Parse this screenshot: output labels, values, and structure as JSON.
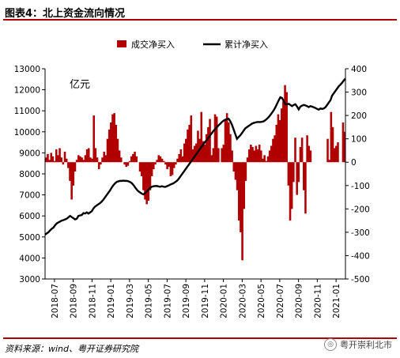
{
  "header": {
    "title": "图表4：北上资金流向情况"
  },
  "footer": {
    "source": "资料来源：wind、粤开证券研究院",
    "watermark": "粤开崇利北市"
  },
  "chart_data": {
    "type": "bar+line",
    "unit_label": "亿元",
    "legend": {
      "placement": "top",
      "bar_label": "成交净买入",
      "line_label": "累计净买入"
    },
    "colors": {
      "bar": "#b00000",
      "line": "#000000"
    },
    "x_ticks": [
      "2018-07",
      "2018-09",
      "2018-11",
      "2019-01",
      "2019-03",
      "2019-05",
      "2019-07",
      "2019-09",
      "2019-11",
      "2020-01",
      "2020-03",
      "2020-05",
      "2020-07",
      "2020-09",
      "2020-11",
      "2021-01"
    ],
    "y_left": {
      "min": 3000,
      "max": 13000,
      "ticks": [
        3000,
        4000,
        5000,
        6000,
        7000,
        8000,
        9000,
        10000,
        11000,
        12000,
        13000
      ]
    },
    "y_right": {
      "min": -500,
      "max": 400,
      "ticks": [
        400,
        300,
        200,
        100,
        0,
        -100,
        -200,
        -300,
        -400,
        -500
      ]
    },
    "bar_series": {
      "name": "成交净买入",
      "values": [
        20,
        35,
        10,
        40,
        25,
        5,
        55,
        30,
        60,
        20,
        -10,
        45,
        15,
        -25,
        -80,
        -160,
        -100,
        -40,
        10,
        30,
        25,
        20,
        10,
        30,
        55,
        60,
        20,
        15,
        200,
        60,
        20,
        -30,
        -10,
        20,
        45,
        30,
        100,
        140,
        170,
        205,
        210,
        160,
        100,
        50,
        20,
        0,
        -10,
        -20,
        -15,
        5,
        25,
        35,
        45,
        25,
        0,
        -40,
        -60,
        -120,
        -160,
        -180,
        -165,
        -120,
        -60,
        -30,
        -10,
        10,
        30,
        25,
        15,
        5,
        -10,
        -30,
        -20,
        -60,
        -55,
        -25,
        -10,
        15,
        35,
        55,
        25,
        80,
        100,
        140,
        160,
        200,
        55,
        70,
        80,
        135,
        100,
        215,
        90,
        75,
        120,
        150,
        185,
        30,
        60,
        205,
        195,
        60,
        0,
        60,
        75,
        185,
        210,
        170,
        120,
        50,
        -40,
        -75,
        -120,
        -250,
        -300,
        -420,
        -200,
        -80,
        20,
        55,
        75,
        65,
        50,
        70,
        55,
        75,
        50,
        15,
        30,
        5,
        25,
        50,
        70,
        100,
        115,
        160,
        205,
        180,
        230,
        260,
        330,
        300,
        -100,
        -250,
        -200,
        -85,
        105,
        -140,
        -85,
        65,
        105,
        -120,
        -220,
        115,
        70,
        50,
        0,
        0,
        0,
        0,
        0,
        0,
        0,
        0,
        0,
        100,
        10,
        215,
        150,
        60,
        70,
        85,
        0,
        0,
        170,
        130
      ]
    },
    "line_series": {
      "name": "累计净买入",
      "values": [
        -310,
        -305,
        -300,
        -292,
        -285,
        -280,
        -270,
        -262,
        -258,
        -254,
        -250,
        -248,
        -245,
        -242,
        -236,
        -230,
        -235,
        -240,
        -245,
        -242,
        -230,
        -228,
        -226,
        -218,
        -220,
        -215,
        -220,
        -215,
        -210,
        -198,
        -190,
        -185,
        -180,
        -175,
        -168,
        -160,
        -150,
        -140,
        -130,
        -120,
        -108,
        -98,
        -90,
        -84,
        -82,
        -80,
        -80,
        -79,
        -80,
        -80,
        -82,
        -85,
        -90,
        -98,
        -108,
        -118,
        -125,
        -130,
        -135,
        -138,
        -132,
        -125,
        -118,
        -110,
        -105,
        -103,
        -102,
        -102,
        -104,
        -105,
        -103,
        -105,
        -106,
        -103,
        -100,
        -96,
        -93,
        -90,
        -85,
        -80,
        -72,
        -62,
        -52,
        -42,
        -32,
        -22,
        -12,
        -2,
        8,
        18,
        28,
        38,
        48,
        58,
        68,
        78,
        88,
        95,
        105,
        115,
        125,
        135,
        142,
        150,
        158,
        165,
        172,
        178,
        182,
        184,
        186,
        175,
        160,
        140,
        120,
        100,
        108,
        115,
        125,
        135,
        145,
        150,
        155,
        160,
        165,
        168,
        170,
        172,
        172,
        172,
        173,
        175,
        180,
        186,
        193,
        202,
        212,
        222,
        235,
        250,
        265,
        278,
        275,
        262,
        248,
        248,
        250,
        245,
        240,
        245,
        248,
        238,
        226,
        238,
        242,
        245,
        243,
        240,
        236,
        240,
        238,
        235,
        232,
        228,
        225,
        230,
        228,
        230,
        235,
        245,
        255,
        265,
        285,
        295,
        305,
        315,
        325,
        332,
        340,
        350,
        358
      ]
    }
  }
}
